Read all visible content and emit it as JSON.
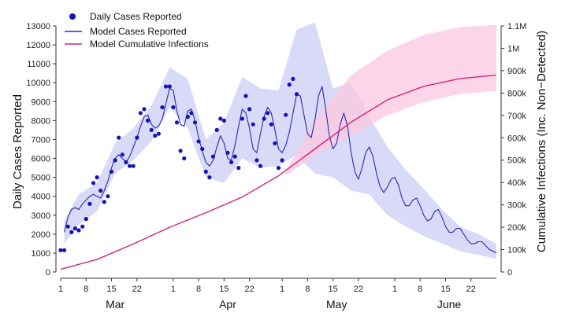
{
  "chart_data": {
    "type": "line",
    "xlabel": "",
    "ylabel_left": "Daily Cases Reported",
    "ylabel_right": "Cumulative Infections (Inc. Non−Detected)",
    "x_range_days": [
      0,
      120
    ],
    "y_left_range": [
      0,
      13000
    ],
    "y_right_range": [
      0,
      1100000
    ],
    "left_ticks": [
      0,
      1000,
      2000,
      3000,
      4000,
      5000,
      6000,
      7000,
      8000,
      9000,
      10000,
      11000,
      12000,
      13000
    ],
    "right_ticks": [
      {
        "value": 0,
        "label": "0"
      },
      {
        "value": 100000,
        "label": "100k"
      },
      {
        "value": 200000,
        "label": "200k"
      },
      {
        "value": 300000,
        "label": "300k"
      },
      {
        "value": 400000,
        "label": "400k"
      },
      {
        "value": 500000,
        "label": "500k"
      },
      {
        "value": 600000,
        "label": "600k"
      },
      {
        "value": 700000,
        "label": "700k"
      },
      {
        "value": 800000,
        "label": "800k"
      },
      {
        "value": 900000,
        "label": "900k"
      },
      {
        "value": 1000000,
        "label": "1M"
      },
      {
        "value": 1100000,
        "label": "1.1M"
      }
    ],
    "x_ticks": [
      {
        "day": 0,
        "label": "1"
      },
      {
        "day": 7,
        "label": "8"
      },
      {
        "day": 14,
        "label": "15"
      },
      {
        "day": 21,
        "label": "22"
      },
      {
        "day": 31,
        "label": "1"
      },
      {
        "day": 38,
        "label": "8"
      },
      {
        "day": 45,
        "label": "15"
      },
      {
        "day": 52,
        "label": "22"
      },
      {
        "day": 61,
        "label": "1"
      },
      {
        "day": 68,
        "label": "8"
      },
      {
        "day": 75,
        "label": "15"
      },
      {
        "day": 82,
        "label": "22"
      },
      {
        "day": 92,
        "label": "1"
      },
      {
        "day": 99,
        "label": "8"
      },
      {
        "day": 106,
        "label": "15"
      },
      {
        "day": 113,
        "label": "22"
      }
    ],
    "months": [
      {
        "day": 15,
        "label": "Mar"
      },
      {
        "day": 46,
        "label": "Apr"
      },
      {
        "day": 76,
        "label": "May"
      },
      {
        "day": 107,
        "label": "June"
      }
    ],
    "legend": [
      "Daily Cases Reported",
      "Model Cases Reported",
      "Model Cumulative Infections"
    ],
    "legend_position": "top-left",
    "colors": {
      "points": "#1414b4",
      "model_line": "#2a2ab0",
      "model_band": "#c9c9f5",
      "cumulative_line": "#d6247f",
      "cumulative_band": "#fbc8e0"
    },
    "series": [
      {
        "name": "Daily Cases Reported",
        "kind": "points",
        "x": [
          0,
          1,
          2,
          3,
          4,
          5,
          6,
          7,
          8,
          9,
          10,
          11,
          12,
          13,
          14,
          15,
          16,
          17,
          18,
          19,
          20,
          21,
          22,
          23,
          24,
          25,
          26,
          27,
          28,
          29,
          30,
          31,
          32,
          33,
          34,
          35,
          36,
          37,
          38,
          39,
          40,
          41,
          42,
          43,
          44,
          45,
          46,
          47,
          48,
          49,
          50,
          51,
          52,
          53,
          54,
          55,
          56,
          57,
          58,
          59,
          60,
          61,
          62,
          63,
          64,
          65
        ],
        "y": [
          1150,
          1150,
          2400,
          2100,
          2300,
          2200,
          2400,
          2800,
          3600,
          4700,
          5000,
          4300,
          3700,
          4000,
          5300,
          5900,
          7100,
          6200,
          5800,
          5600,
          5600,
          7100,
          8400,
          8600,
          8000,
          7500,
          7200,
          7300,
          8700,
          9800,
          9800,
          8700,
          7900,
          6400,
          6000,
          8200,
          8400,
          7900,
          6900,
          6500,
          5300,
          5000,
          6100,
          7500,
          8100,
          8000,
          6300,
          5800,
          6100,
          5500,
          8100,
          9300,
          8600,
          7800,
          5900,
          5600,
          8100,
          8400,
          7800,
          6800,
          5500,
          5900,
          8300,
          9900,
          10200,
          9400
        ]
      },
      {
        "name": "Model Cases Reported",
        "kind": "line",
        "x": [
          1,
          2,
          3,
          4,
          5,
          6,
          7,
          8,
          9,
          10,
          11,
          12,
          13,
          14,
          15,
          16,
          17,
          18,
          19,
          20,
          21,
          22,
          23,
          24,
          25,
          26,
          27,
          28,
          29,
          30,
          31,
          32,
          33,
          34,
          35,
          36,
          37,
          38,
          39,
          40,
          41,
          42,
          43,
          44,
          45,
          46,
          47,
          48,
          49,
          50,
          51,
          52,
          53,
          54,
          55,
          56,
          57,
          58,
          59,
          60,
          61,
          62,
          63,
          64,
          65,
          66,
          67,
          68,
          69,
          70,
          71,
          72,
          73,
          74,
          75,
          76,
          77,
          78,
          79,
          80,
          81,
          82,
          83,
          84,
          85,
          86,
          87,
          88,
          89,
          90,
          91,
          92,
          93,
          94,
          95,
          96,
          97,
          98,
          99,
          100,
          101,
          102,
          103,
          104,
          105,
          106,
          107,
          108,
          109,
          110,
          111,
          112,
          113,
          114,
          115,
          116,
          117,
          118,
          119,
          120
        ],
        "y": [
          2100,
          2900,
          3300,
          3400,
          3300,
          3600,
          3800,
          4000,
          4100,
          4000,
          3900,
          4300,
          4800,
          5500,
          6000,
          6200,
          6000,
          5800,
          6100,
          6600,
          7100,
          7700,
          8200,
          8300,
          7800,
          7600,
          7700,
          8100,
          8900,
          9700,
          9600,
          8500,
          7800,
          7700,
          8500,
          8600,
          8000,
          7100,
          6400,
          5800,
          5600,
          5900,
          6600,
          7200,
          6800,
          6000,
          5900,
          6700,
          7700,
          8600,
          8400,
          7600,
          6500,
          6300,
          7300,
          8200,
          8700,
          8400,
          7500,
          6500,
          6300,
          6700,
          7400,
          8400,
          9400,
          9300,
          8300,
          7300,
          7100,
          8000,
          9300,
          9800,
          8600,
          7200,
          6500,
          6800,
          7800,
          8400,
          7700,
          6300,
          5300,
          4900,
          5500,
          6300,
          6600,
          6100,
          5200,
          4500,
          4200,
          4500,
          4900,
          5000,
          4600,
          3900,
          3500,
          3500,
          3800,
          3900,
          3500,
          3000,
          2700,
          2800,
          3200,
          3300,
          2900,
          2400,
          2100,
          2100,
          2300,
          2300,
          2000,
          1700,
          1500,
          1500,
          1600,
          1600,
          1400,
          1200,
          1100,
          1000
        ]
      },
      {
        "name": "Model Cumulative Infections",
        "kind": "line",
        "axis": "right",
        "x": [
          0,
          10,
          20,
          30,
          40,
          50,
          60,
          70,
          80,
          90,
          100,
          110,
          120
        ],
        "y": [
          12000,
          56000,
          125000,
          200000,
          265000,
          335000,
          430000,
          550000,
          670000,
          770000,
          830000,
          865000,
          880000
        ]
      }
    ],
    "bands": [
      {
        "series": "Model Cases Reported",
        "x": [
          1,
          5,
          10,
          15,
          20,
          25,
          30,
          35,
          40,
          45,
          50,
          55,
          60,
          65,
          70,
          75,
          80,
          85,
          90,
          95,
          100,
          105,
          110,
          115,
          120
        ],
        "lower": [
          1500,
          2500,
          3200,
          5200,
          5900,
          6900,
          8700,
          7600,
          5000,
          4700,
          6000,
          5500,
          5600,
          6200,
          5200,
          5000,
          4300,
          4100,
          3000,
          2400,
          1900,
          1500,
          1100,
          900,
          700
        ],
        "upper": [
          2700,
          4100,
          4700,
          6800,
          7600,
          8800,
          10800,
          10200,
          7000,
          7900,
          10300,
          9700,
          9600,
          12800,
          13200,
          9700,
          10000,
          8200,
          6600,
          5400,
          4400,
          3300,
          2400,
          2000,
          1500
        ]
      },
      {
        "series": "Model Cumulative Infections",
        "axis": "right",
        "x": [
          62,
          70,
          80,
          90,
          100,
          110,
          120
        ],
        "lower": [
          430000,
          520000,
          610000,
          700000,
          760000,
          795000,
          810000
        ],
        "upper": [
          450000,
          680000,
          880000,
          990000,
          1060000,
          1095000,
          1105000
        ]
      }
    ]
  }
}
